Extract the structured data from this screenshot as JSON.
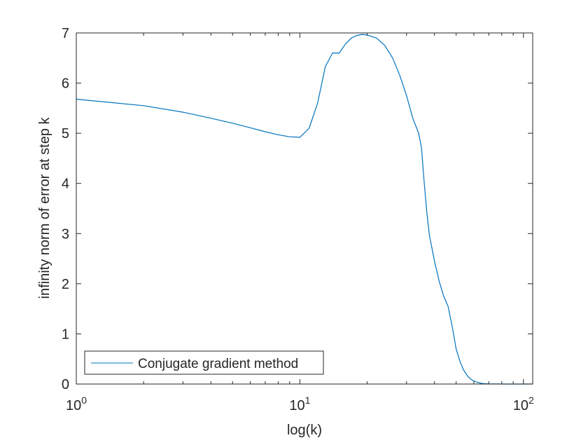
{
  "chart_data": {
    "type": "line",
    "title": "",
    "xlabel": "log(k)",
    "ylabel": "infinity norm of error at step k",
    "x_scale": "log",
    "xlim": [
      1,
      110
    ],
    "ylim": [
      0,
      7
    ],
    "x_ticks": [
      {
        "value": 1,
        "base": "10",
        "exp": "0"
      },
      {
        "value": 10,
        "base": "10",
        "exp": "1"
      },
      {
        "value": 100,
        "base": "10",
        "exp": "2"
      }
    ],
    "y_ticks": [
      "0",
      "1",
      "2",
      "3",
      "4",
      "5",
      "6",
      "7"
    ],
    "grid": false,
    "legend_position": "bottom-left",
    "colors": {
      "series": "#0072bd",
      "axis": "#262626",
      "legend_border": "#262626"
    },
    "series": [
      {
        "name": "Conjugate gradient method",
        "x": [
          1,
          2,
          3,
          4,
          5,
          6,
          7,
          8,
          9,
          10,
          11,
          12,
          13,
          14,
          15,
          16,
          17,
          18,
          19,
          20,
          22,
          24,
          26,
          28,
          30,
          32,
          34,
          35,
          36,
          37,
          38,
          39,
          40,
          42,
          44,
          46,
          48,
          50,
          52,
          54,
          56,
          58,
          60,
          62,
          64,
          66,
          68,
          70,
          75,
          80,
          90,
          100,
          110
        ],
        "y": [
          5.68,
          5.55,
          5.42,
          5.3,
          5.2,
          5.11,
          5.03,
          4.97,
          4.93,
          4.92,
          5.1,
          5.6,
          6.33,
          6.6,
          6.6,
          6.78,
          6.9,
          6.95,
          6.97,
          6.96,
          6.9,
          6.75,
          6.5,
          6.15,
          5.75,
          5.3,
          5.0,
          4.7,
          4.0,
          3.4,
          2.95,
          2.7,
          2.45,
          2.05,
          1.75,
          1.55,
          1.15,
          0.7,
          0.45,
          0.28,
          0.17,
          0.1,
          0.06,
          0.035,
          0.02,
          0.01,
          0.005,
          0.003,
          0.001,
          0.0005,
          0.0002,
          0.0001,
          0.0
        ]
      }
    ]
  }
}
